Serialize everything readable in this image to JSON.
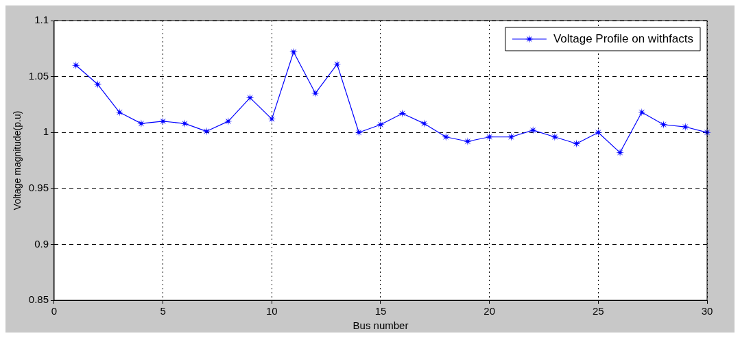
{
  "chart_data": {
    "type": "line",
    "xlabel": "Bus number",
    "ylabel": "Voltage magnitude(p.u)",
    "x": [
      1,
      2,
      3,
      4,
      5,
      6,
      7,
      8,
      9,
      10,
      11,
      12,
      13,
      14,
      15,
      16,
      17,
      18,
      19,
      20,
      21,
      22,
      23,
      24,
      25,
      26,
      27,
      28,
      29,
      30
    ],
    "series": [
      {
        "name": "Voltage Profile on withfacts",
        "color": "#0000ff",
        "values": [
          1.06,
          1.043,
          1.018,
          1.008,
          1.01,
          1.008,
          1.001,
          1.01,
          1.031,
          1.012,
          1.072,
          1.035,
          1.061,
          1.0,
          1.007,
          1.017,
          1.008,
          0.996,
          0.992,
          0.996,
          0.996,
          1.002,
          0.996,
          0.99,
          1.0,
          0.982,
          1.018,
          1.007,
          1.005,
          1.0
        ]
      }
    ],
    "xlim": [
      0,
      30
    ],
    "xticks": [
      0,
      5,
      10,
      15,
      20,
      25,
      30
    ],
    "ylim": [
      0.85,
      1.1
    ],
    "yticks": [
      0.85,
      0.9,
      0.95,
      1,
      1.05,
      1.1
    ],
    "grid": true,
    "legend": "top right",
    "marker": "star",
    "line_style": "solid"
  }
}
